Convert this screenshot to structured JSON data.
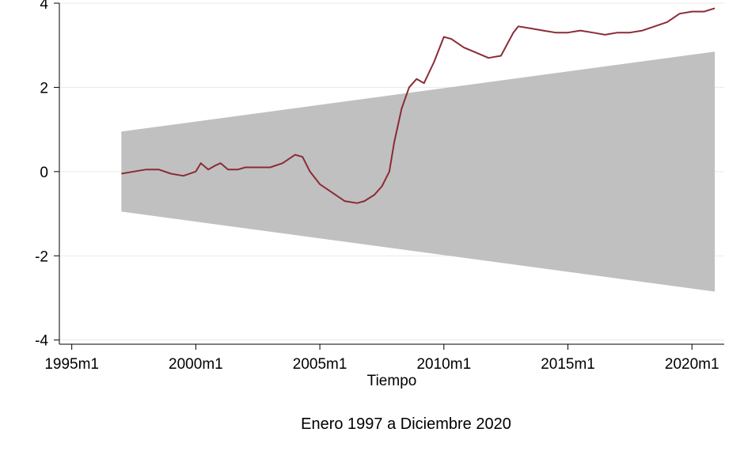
{
  "chart_data": {
    "type": "line",
    "title": "",
    "xlabel": "Tiempo",
    "ylabel": "",
    "note": "Enero 1997 a Diciembre 2020",
    "x_ticks": [
      "1995m1",
      "2000m1",
      "2005m1",
      "2010m1",
      "2015m1",
      "2020m1"
    ],
    "x_tick_values": [
      1995.0,
      2000.0,
      2005.0,
      2010.0,
      2015.0,
      2020.0
    ],
    "y_ticks": [
      -4,
      -2,
      0,
      2,
      4
    ],
    "xlim": [
      1994.5,
      2021.3
    ],
    "ylim": [
      -4.1,
      4.0
    ],
    "grid": true,
    "legend": "none",
    "colors": {
      "line": "#8b2b35",
      "band": "#c0c0c0",
      "grid": "#eaeaea"
    },
    "band": {
      "x": [
        1997.0,
        2020.92
      ],
      "upper": [
        0.95,
        2.85
      ],
      "lower": [
        -0.95,
        -2.85
      ]
    },
    "series": [
      {
        "x": [
          1997.0,
          1997.5,
          1998.0,
          1998.5,
          1999.0,
          1999.5,
          2000.0,
          2000.2,
          2000.5,
          2000.8,
          2001.0,
          2001.3,
          2001.7,
          2002.0,
          2002.5,
          2003.0,
          2003.5,
          2004.0,
          2004.3,
          2004.6,
          2005.0,
          2005.5,
          2006.0,
          2006.5,
          2006.8,
          2007.2,
          2007.5,
          2007.8,
          2008.0,
          2008.3,
          2008.6,
          2008.9,
          2009.2,
          2009.6,
          2010.0,
          2010.3,
          2010.8,
          2011.2,
          2011.8,
          2012.3,
          2012.8,
          2013.0,
          2013.5,
          2014.0,
          2014.5,
          2015.0,
          2015.5,
          2016.0,
          2016.5,
          2017.0,
          2017.5,
          2018.0,
          2018.5,
          2019.0,
          2019.5,
          2020.0,
          2020.5,
          2020.92
        ],
        "values": [
          -0.05,
          0.0,
          0.05,
          0.05,
          -0.05,
          -0.1,
          0.0,
          0.2,
          0.05,
          0.15,
          0.2,
          0.05,
          0.05,
          0.1,
          0.1,
          0.1,
          0.2,
          0.4,
          0.35,
          0.0,
          -0.3,
          -0.5,
          -0.7,
          -0.75,
          -0.7,
          -0.55,
          -0.35,
          0.0,
          0.7,
          1.5,
          2.0,
          2.2,
          2.1,
          2.6,
          3.2,
          3.15,
          2.95,
          2.85,
          2.7,
          2.75,
          3.3,
          3.45,
          3.4,
          3.35,
          3.3,
          3.3,
          3.35,
          3.3,
          3.25,
          3.3,
          3.3,
          3.35,
          3.45,
          3.55,
          3.75,
          3.8,
          3.8,
          3.88
        ]
      }
    ]
  }
}
